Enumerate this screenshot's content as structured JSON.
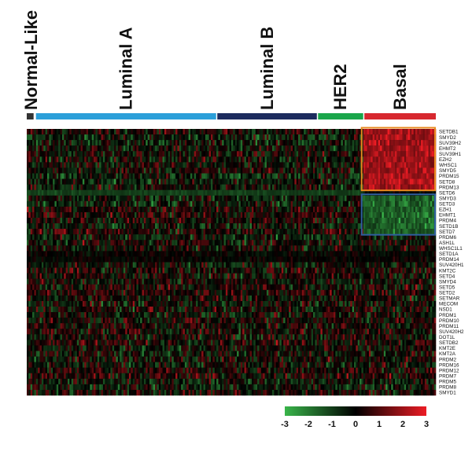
{
  "chart_data": {
    "type": "heatmap",
    "title": "",
    "xlabel": "",
    "ylabel": "",
    "subtypes": [
      {
        "name": "Normal-Like",
        "color": "#333333",
        "sample_fraction": 0.022
      },
      {
        "name": "Luminal A",
        "color": "#2b9fd9",
        "sample_fraction": 0.497
      },
      {
        "name": "Luminal B",
        "color": "#1c2b5e",
        "sample_fraction": 0.276
      },
      {
        "name": "HER2",
        "color": "#1aa64b",
        "sample_fraction": 0.127
      },
      {
        "name": "Basal",
        "color": "#d7282f",
        "sample_fraction": 0.199
      }
    ],
    "genes": [
      "SETDB1",
      "SMYD2",
      "SUV39H2",
      "EHMT2",
      "SUV39H1",
      "EZH2",
      "WHSC1",
      "SMYD5",
      "PRDM15",
      "SETD8",
      "PRDM13",
      "SETD6",
      "SMYD3",
      "SETD3",
      "EZH1",
      "EHMT1",
      "PRDM4",
      "SETD1B",
      "SETD7",
      "PRDM6",
      "ASH1L",
      "WHSC1L1",
      "SETD1A",
      "PRDM14",
      "SUV420H1",
      "KMT2C",
      "SETD4",
      "SMYD4",
      "SETD5",
      "SETD2",
      "SETMAR",
      "MECOM",
      "NSD1",
      "PRDM1",
      "PRDM10",
      "PRDM11",
      "SUV420H2",
      "DOT1L",
      "SETDB2",
      "KMT2E",
      "KMT2A",
      "PRDM2",
      "PRDM16",
      "PRDM12",
      "PRDM7",
      "PRDM5",
      "PRDM8",
      "SMYD1"
    ],
    "color_scale": {
      "min": -3,
      "max": 3,
      "ticks": [
        "-3",
        "-2",
        "-1",
        "0",
        "1",
        "2",
        "3"
      ],
      "low_color": "#39b54a",
      "mid_color": "#000000",
      "high_color": "#ed1c24"
    },
    "highlight_boxes": [
      {
        "subtype": "Basal",
        "genes_from": "SETDB1",
        "genes_to": "PRDM13",
        "color": "#e8891f"
      },
      {
        "subtype": "Basal",
        "genes_from": "SMYD3",
        "genes_to": "SETD7",
        "color": "#2f5e9e"
      }
    ]
  }
}
